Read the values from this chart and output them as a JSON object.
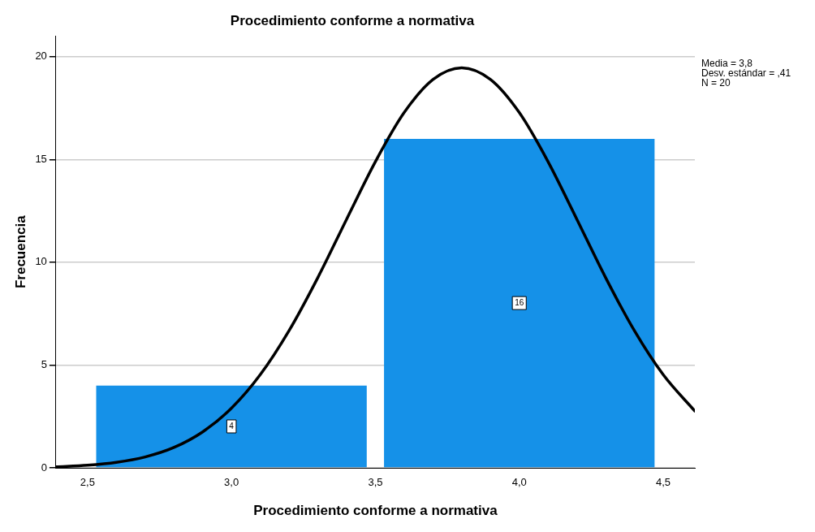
{
  "chart_data": {
    "type": "histogram",
    "title": "Procedimiento conforme a normativa",
    "xlabel": "Procedimiento conforme a normativa",
    "ylabel": "Frecuencia",
    "bins": [
      2.5,
      3.5,
      4.5
    ],
    "values": [
      4,
      16
    ],
    "color": "#1591e8",
    "value_labels": [
      "4",
      "16"
    ],
    "series": [
      {
        "type": "line",
        "color": "#000000",
        "x": [
          2.39,
          2.5,
          2.6,
          2.7,
          2.8,
          2.9,
          3.0,
          3.1,
          3.2,
          3.3,
          3.4,
          3.5,
          3.6,
          3.7,
          3.8,
          3.9,
          4.0,
          4.1,
          4.2,
          4.3,
          4.4,
          4.5,
          4.61
        ],
        "values": [
          0.05,
          0.13,
          0.27,
          0.53,
          0.99,
          1.75,
          2.9,
          4.53,
          6.67,
          9.25,
          12.09,
          14.89,
          17.28,
          18.89,
          19.46,
          18.89,
          17.28,
          14.89,
          12.09,
          9.25,
          6.67,
          4.53,
          2.76
        ]
      }
    ],
    "xlim": [
      2.39,
      4.61
    ],
    "xticks": [
      {
        "value": 2.5,
        "label": "2,5"
      },
      {
        "value": 3.0,
        "label": "3,0"
      },
      {
        "value": 3.5,
        "label": "3,5"
      },
      {
        "value": 4.0,
        "label": "4,0"
      },
      {
        "value": 4.5,
        "label": "4,5"
      }
    ],
    "ylim": [
      0,
      21
    ],
    "yticks": [
      0,
      5,
      10,
      15,
      20
    ],
    "grid": "y",
    "annotations": [
      "Media = 3,8",
      "Desv. estándar = ,41",
      "N = 20"
    ]
  }
}
